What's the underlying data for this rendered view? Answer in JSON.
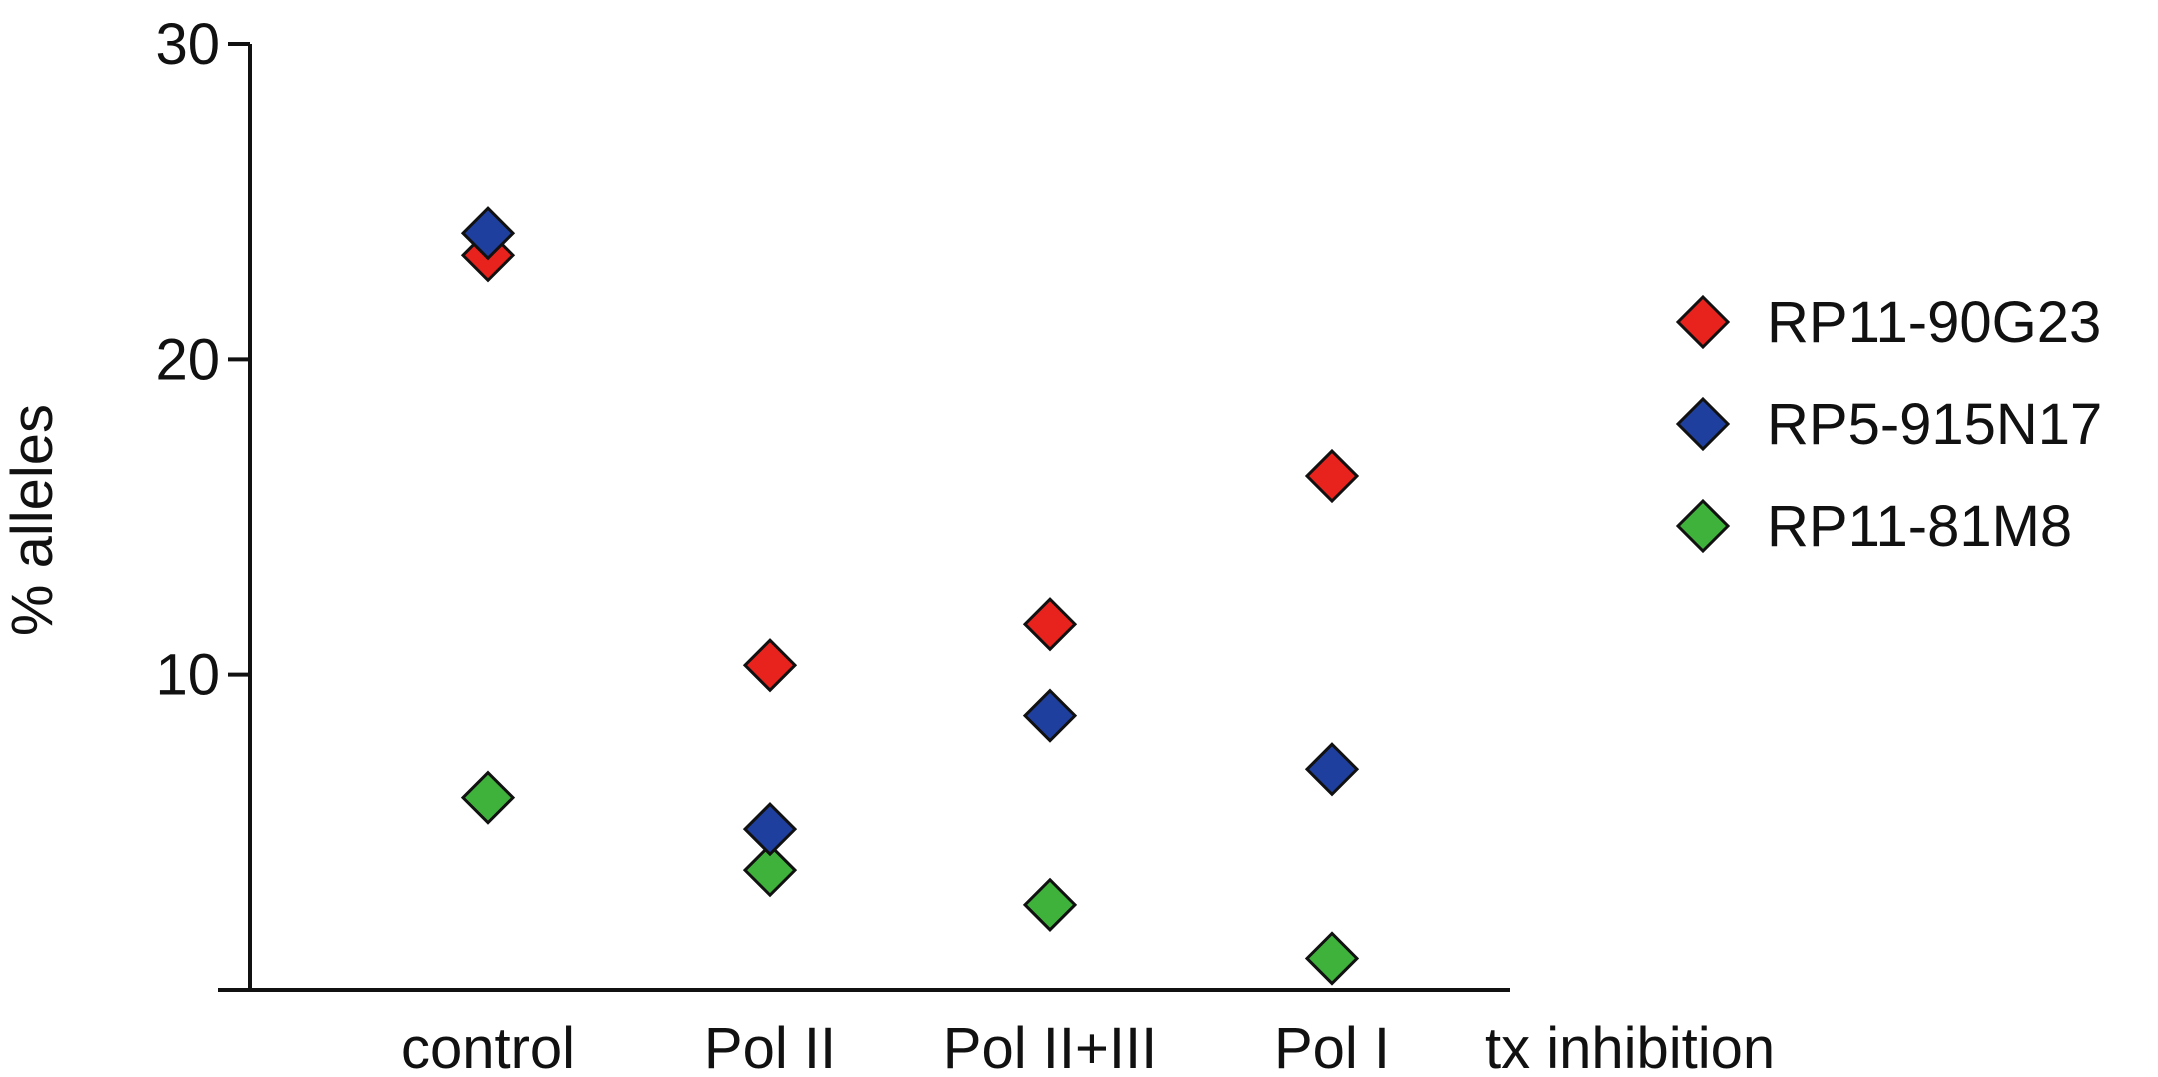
{
  "chart_data": {
    "type": "scatter",
    "ylabel": "% alleles",
    "xlabel": "tx inhibition",
    "categories": [
      "control",
      "Pol II",
      "Pol II+III",
      "Pol I"
    ],
    "yticks": [
      10,
      20,
      30
    ],
    "ylim": [
      0,
      30
    ],
    "grid": false,
    "legend_position": "right",
    "marker": "diamond",
    "series": [
      {
        "name": "RP11-90G23",
        "color": "#e8221c",
        "values": [
          23.3,
          10.3,
          11.6,
          16.3
        ]
      },
      {
        "name": "RP5-915N17",
        "color": "#1f3f9e",
        "values": [
          24.0,
          5.1,
          8.7,
          7.0
        ]
      },
      {
        "name": "RP11-81M8",
        "color": "#3fb23c",
        "values": [
          6.1,
          3.8,
          2.7,
          1.0
        ]
      }
    ]
  }
}
